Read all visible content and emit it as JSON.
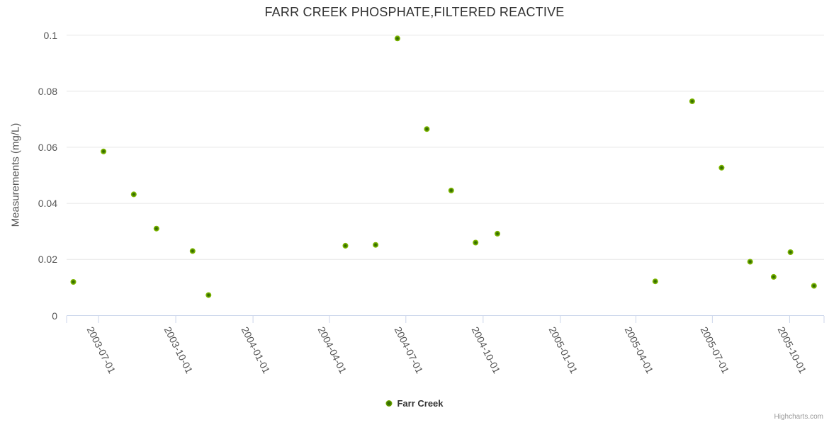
{
  "chart_data": {
    "type": "scatter",
    "title": "FARR CREEK PHOSPHATE,FILTERED REACTIVE",
    "xlabel": "",
    "ylabel": "Measurements (mg/L)",
    "ylim": [
      0,
      0.1
    ],
    "yticks": [
      0,
      0.02,
      0.04,
      0.06,
      0.08,
      0.1
    ],
    "ytick_labels": [
      "0",
      "0.02",
      "0.04",
      "0.06",
      "0.08",
      "0.1"
    ],
    "xlim": [
      "2003-05-24",
      "2005-11-11"
    ],
    "xticks": [
      "2003-07-01",
      "2003-10-01",
      "2004-01-01",
      "2004-04-01",
      "2004-07-01",
      "2004-10-01",
      "2005-01-01",
      "2005-04-01",
      "2005-07-01",
      "2005-10-01"
    ],
    "grid": true,
    "legend_position": "bottom-center",
    "series": [
      {
        "name": "Farr Creek",
        "marker_color_outer": "#7db600",
        "marker_color_inner": "#356e00",
        "points": [
          {
            "date": "2003-06-01",
            "value": 0.012
          },
          {
            "date": "2003-07-07",
            "value": 0.0585
          },
          {
            "date": "2003-08-12",
            "value": 0.0432
          },
          {
            "date": "2003-09-08",
            "value": 0.031
          },
          {
            "date": "2003-10-21",
            "value": 0.023
          },
          {
            "date": "2003-11-09",
            "value": 0.0073
          },
          {
            "date": "2004-04-20",
            "value": 0.0249
          },
          {
            "date": "2004-05-26",
            "value": 0.0252
          },
          {
            "date": "2004-06-21",
            "value": 0.0988
          },
          {
            "date": "2004-07-26",
            "value": 0.0665
          },
          {
            "date": "2004-08-24",
            "value": 0.0446
          },
          {
            "date": "2004-09-22",
            "value": 0.026
          },
          {
            "date": "2004-10-18",
            "value": 0.0292
          },
          {
            "date": "2005-04-24",
            "value": 0.0122
          },
          {
            "date": "2005-06-07",
            "value": 0.0764
          },
          {
            "date": "2005-07-12",
            "value": 0.0527
          },
          {
            "date": "2005-08-15",
            "value": 0.0192
          },
          {
            "date": "2005-09-12",
            "value": 0.0138
          },
          {
            "date": "2005-10-02",
            "value": 0.0226
          },
          {
            "date": "2005-10-30",
            "value": 0.0106
          }
        ]
      }
    ]
  },
  "legend": {
    "label": "Farr Creek"
  },
  "credits": {
    "label": "Highcharts.com"
  },
  "colors": {
    "background": "#ffffff",
    "title_text": "#333333",
    "axis_label_text": "#555555",
    "axis_line": "#ccd6eb",
    "gridline": "#e6e6e6",
    "legend_text": "#333333",
    "credits_text": "#999999",
    "marker_outer": "#7db600",
    "marker_inner": "#356e00"
  }
}
